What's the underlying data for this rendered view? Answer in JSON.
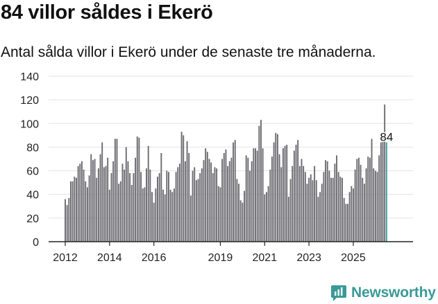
{
  "header": {
    "title": "84 villor såldes i Ekerö",
    "subtitle": "Antal sålda villor i Ekerö under de senaste tre månaderna."
  },
  "brand": {
    "name": "Newsworthy",
    "icon": "newsworthy-logo-icon",
    "color": "#3a9a98"
  },
  "colors": {
    "bar": "#6b6a70",
    "highlight": "#3a9a98",
    "grid": "#e3e3e3",
    "axis": "#222222"
  },
  "chart_data": {
    "type": "bar",
    "title": "84 villor såldes i Ekerö",
    "xlabel": "",
    "ylabel": "",
    "ylim": [
      0,
      140
    ],
    "yticks": [
      "0",
      "20",
      "40",
      "60",
      "80",
      "100",
      "120",
      "140"
    ],
    "xticks": [
      {
        "label": "2012",
        "year": 2012
      },
      {
        "label": "2014",
        "year": 2014
      },
      {
        "label": "2016",
        "year": 2016
      },
      {
        "label": "2019",
        "year": 2019
      },
      {
        "label": "2021",
        "year": 2021
      },
      {
        "label": "2023",
        "year": 2023
      },
      {
        "label": "2025",
        "year": 2025
      }
    ],
    "period_unit": "rolling three-month total, monthly",
    "x_start": "2012-01",
    "values": [
      36,
      31,
      37,
      51,
      51,
      55,
      54,
      64,
      66,
      68,
      61,
      51,
      46,
      56,
      74,
      69,
      70,
      54,
      62,
      74,
      84,
      63,
      64,
      71,
      44,
      58,
      68,
      87,
      87,
      49,
      51,
      66,
      61,
      80,
      68,
      58,
      48,
      58,
      71,
      89,
      88,
      59,
      45,
      46,
      62,
      81,
      61,
      42,
      33,
      45,
      55,
      58,
      75,
      44,
      40,
      60,
      59,
      44,
      42,
      45,
      59,
      63,
      66,
      93,
      90,
      68,
      85,
      75,
      39,
      60,
      63,
      52,
      53,
      58,
      62,
      69,
      79,
      76,
      70,
      67,
      58,
      63,
      62,
      47,
      46,
      70,
      75,
      78,
      64,
      68,
      71,
      84,
      86,
      53,
      49,
      35,
      33,
      43,
      73,
      71,
      60,
      68,
      79,
      79,
      77,
      98,
      103,
      79,
      40,
      42,
      47,
      61,
      72,
      84,
      92,
      91,
      74,
      63,
      79,
      81,
      82,
      38,
      53,
      64,
      77,
      82,
      86,
      64,
      70,
      64,
      59,
      49,
      54,
      57,
      52,
      64,
      52,
      38,
      42,
      49,
      59,
      69,
      68,
      60,
      54,
      54,
      66,
      73,
      59,
      55,
      54,
      37,
      32,
      32,
      42,
      47,
      45,
      61,
      70,
      71,
      65,
      54,
      49,
      62,
      72,
      71,
      87,
      62,
      60,
      59,
      73,
      84,
      92,
      116,
      84
    ],
    "highlight_last": true,
    "annotation": {
      "label": "84",
      "value": 84
    }
  }
}
